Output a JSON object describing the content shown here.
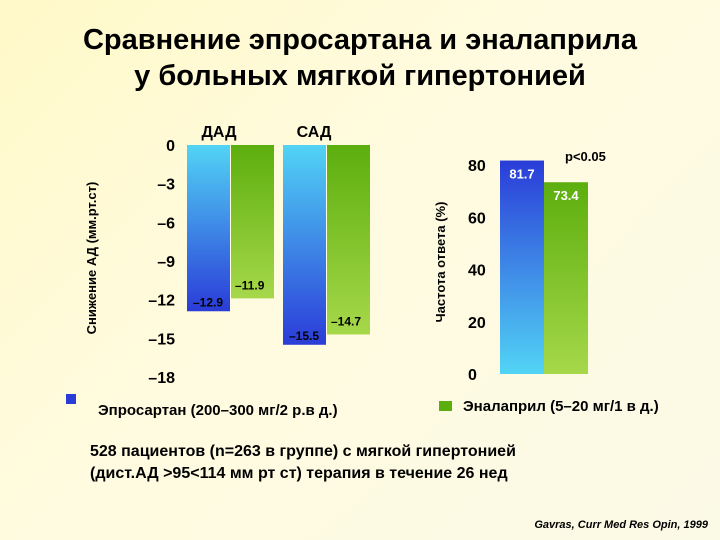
{
  "title_line1": "Сравнение эпросартана и эналаприла",
  "title_line2": "у больных мягкой гипертонией",
  "colors": {
    "eprosartan": "#2a3cd8",
    "eprosartan_light": "#52d4f5",
    "enalapril": "#5cae0e",
    "enalapril_light": "#a6d84a"
  },
  "chart_data": [
    {
      "type": "bar",
      "ylabel": "Снижение АД (мм.рт.ст)",
      "yticks": [
        "0",
        "–3",
        "–6",
        "–9",
        "–12",
        "–15",
        "–18"
      ],
      "ylim": [
        -18,
        0
      ],
      "categories": [
        "ДАД",
        "САД"
      ],
      "series": [
        {
          "name": "Эпросартан (200–300 мг/2 р.в д.)",
          "values": [
            -12.9,
            -15.5
          ],
          "labels": [
            "–12.9",
            "–15.5"
          ]
        },
        {
          "name": "Эналаприл (5–20 мг/1 в д.)",
          "values": [
            -11.9,
            -14.7
          ],
          "labels": [
            "–11.9",
            "–14.7"
          ]
        }
      ]
    },
    {
      "type": "bar",
      "ylabel": "Частота ответа  (%)",
      "yticks": [
        "80",
        "60",
        "40",
        "20",
        "0"
      ],
      "ylim": [
        0,
        80
      ],
      "annotation": "p<0.05",
      "series": [
        {
          "name": "Эпросартан (200–300 мг/2 р.в д.)",
          "values": [
            81.7
          ],
          "labels": [
            "81.7"
          ]
        },
        {
          "name": "Эналаприл (5–20 мг/1 в д.)",
          "values": [
            73.4
          ],
          "labels": [
            "73.4"
          ]
        }
      ]
    }
  ],
  "legend": {
    "eprosartan": "Эпросартан (200–300 мг/2 р.в д.)",
    "enalapril": "Эналаприл (5–20 мг/1 в д.)"
  },
  "note_line1": "528 пациентов (n=263 в группе) с мягкой гипертонией",
  "note_line2": "(дист.АД >95<114 мм рт ст) терапия в течение 26 нед",
  "source": "Gavras, Curr Med Res Opin, 1999"
}
